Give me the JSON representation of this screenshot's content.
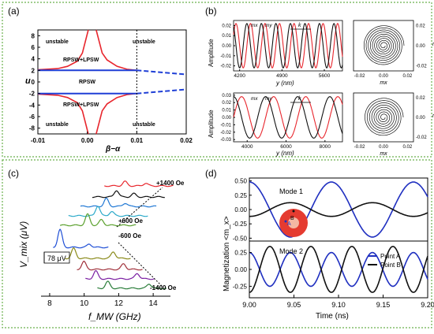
{
  "chart_data": [
    {
      "panel_label": "(a)",
      "type": "line",
      "xlabel": "β−α",
      "ylabel": "u",
      "xlim": [
        -0.01,
        0.02
      ],
      "ylim": [
        -9,
        9
      ],
      "x_ticks": [
        "-0.01",
        "0.00",
        "0.01",
        "0.02"
      ],
      "y_ticks": [
        "8",
        "6",
        "4",
        "2",
        "0",
        "-2",
        "-4",
        "-6",
        "-8"
      ],
      "vline_x": 0.01,
      "regions": [
        "unstable",
        "unstable",
        "RPSW+LPSW",
        "RPSW",
        "RPSW+LPSW",
        "unstable",
        "unstable"
      ],
      "series": [
        {
          "name": "upper boundary",
          "color": "#e8262d",
          "x": [
            -0.01,
            -0.006,
            -0.004,
            -0.002,
            -0.001,
            0.0002
          ],
          "y": [
            2.1,
            2.3,
            2.7,
            3.6,
            5.0,
            9.0
          ]
        },
        {
          "name": "upper boundary right",
          "color": "#e8262d",
          "x": [
            0.0018,
            0.003,
            0.004,
            0.006,
            0.008,
            0.01
          ],
          "y": [
            9.0,
            5.0,
            3.8,
            2.7,
            2.2,
            2.0
          ]
        },
        {
          "name": "lower boundary",
          "color": "#e8262d",
          "x": [
            -0.01,
            -0.006,
            -0.004,
            -0.002,
            -0.001,
            0.0002
          ],
          "y": [
            -2.1,
            -2.3,
            -2.7,
            -3.6,
            -5.0,
            -9.0
          ]
        },
        {
          "name": "lower boundary right",
          "color": "#e8262d",
          "x": [
            0.0018,
            0.003,
            0.004,
            0.006,
            0.008,
            0.01
          ],
          "y": [
            -9.0,
            -5.0,
            -3.8,
            -2.7,
            -2.2,
            -2.0
          ]
        },
        {
          "name": "u=+2",
          "color": "#1f3fd6",
          "x": [
            -0.01,
            0.01
          ],
          "y": [
            2,
            2
          ]
        },
        {
          "name": "u=-2",
          "color": "#1f3fd6",
          "x": [
            -0.01,
            0.01
          ],
          "y": [
            -2,
            -2
          ]
        },
        {
          "name": "dashed upper",
          "color": "#1f3fd6",
          "x": [
            0.01,
            0.02
          ],
          "y": [
            2,
            1.3
          ]
        },
        {
          "name": "dashed lower",
          "color": "#1f3fd6",
          "x": [
            0.01,
            0.02
          ],
          "y": [
            -2,
            -1.3
          ]
        }
      ]
    },
    {
      "panel_label": "(b)",
      "type": "line",
      "top": {
        "ylabel": "Amplitude",
        "xlabel": "y (nm)",
        "x_ticks": [
          "4200",
          "4900",
          "5600"
        ],
        "y_ticks": [
          "0.02",
          "0.01",
          "0.00",
          "-0.01",
          "-0.02"
        ],
        "xlim": [
          4100,
          5900
        ],
        "ylim": [
          -0.025,
          0.025
        ],
        "series_labels": [
          "mx",
          "my"
        ],
        "wave_label": "k",
        "wavelength_nm": 240,
        "amplitude": 0.022
      },
      "bottom": {
        "ylabel": "Amplitude",
        "xlabel": "y (nm)",
        "x_ticks": [
          "4000",
          "6000",
          "8000"
        ],
        "y_ticks": [
          "0.03",
          "0.02",
          "0.01",
          "0.00",
          "-0.01",
          "-0.02",
          "-0.03"
        ],
        "xlim": [
          3300,
          8900
        ],
        "ylim": [
          -0.033,
          0.033
        ],
        "series_labels": [
          "mx",
          "my"
        ],
        "wave_label": "k",
        "wavelength_nm": 1650,
        "amplitude": 0.028
      },
      "orbit_axes": {
        "xlabel": "mx",
        "ylabel": "my",
        "x_ticks": [
          "-0.02",
          "0.00",
          "0.02"
        ],
        "y_ticks": [
          "0.02",
          "0.00",
          "-0.02"
        ]
      },
      "series_colors": {
        "mx": "#e8262d",
        "my": "#111111"
      }
    },
    {
      "panel_label": "(c)",
      "type": "line",
      "ylabel": "V_mix (μV)",
      "xlabel": "f_MW (GHz)",
      "x_ticks": [
        "8",
        "10",
        "12",
        "14"
      ],
      "xlim": [
        7.5,
        15
      ],
      "field_labels": [
        "+1400 Oe",
        "+600 Oe",
        "-600 Oe",
        "-1400 Oe"
      ],
      "scale_bar": "78 μV",
      "series": [
        {
          "color": "#e8262d",
          "peaks": [
            [
              12.0,
              0.4
            ],
            [
              13.2,
              0.25
            ]
          ]
        },
        {
          "color": "#111111",
          "peaks": [
            [
              11.6,
              0.6
            ],
            [
              12.6,
              0.3
            ]
          ]
        },
        {
          "color": "#1f77d4",
          "peaks": [
            [
              11.1,
              0.7
            ],
            [
              12.2,
              0.3
            ]
          ]
        },
        {
          "color": "#2aa9c9",
          "peaks": [
            [
              10.7,
              0.9
            ],
            [
              11.5,
              0.4
            ]
          ]
        },
        {
          "color": "#5aa02c",
          "peaks": [
            [
              10.2,
              1.0
            ],
            [
              11.0,
              0.5
            ]
          ]
        },
        {
          "color": "#1f4fd6",
          "peaks": [
            [
              8.6,
              1.6
            ],
            [
              10.3,
              0.3
            ]
          ]
        },
        {
          "color": "#8a8a1a",
          "peaks": [
            [
              9.3,
              0.9
            ],
            [
              11.6,
              0.6
            ]
          ]
        },
        {
          "color": "#a0303a",
          "peaks": [
            [
              9.8,
              0.7
            ],
            [
              12.1,
              0.5
            ]
          ]
        },
        {
          "color": "#7b1fa2",
          "peaks": [
            [
              10.4,
              0.7
            ],
            [
              12.8,
              0.5
            ]
          ]
        },
        {
          "color": "#2a7d3a",
          "peaks": [
            [
              11.0,
              0.6
            ],
            [
              13.4,
              0.4
            ]
          ]
        }
      ]
    },
    {
      "panel_label": "(d)",
      "type": "line",
      "xlabel": "Time (ns)",
      "ylabel": "Magnetization <m_x>",
      "x_ticks": [
        "9.00",
        "9.05",
        "9.10",
        "9.15",
        "9.20"
      ],
      "xlim": [
        9.0,
        9.2
      ],
      "mode1": {
        "title": "Mode 1",
        "y_ticks": [
          "0.50",
          "0.25",
          "0.00",
          "-0.25",
          "-0.50"
        ],
        "ylim": [
          -0.55,
          0.55
        ],
        "pointA": {
          "amp": 0.48,
          "period": 0.092,
          "phase": 0.0
        },
        "pointB": {
          "amp": 0.12,
          "period": 0.092,
          "phase": 3.14
        }
      },
      "mode2": {
        "title": "Mode 2",
        "y_ticks": [
          "0.25",
          "0.00",
          "-0.25"
        ],
        "ylim": [
          -0.42,
          0.42
        ],
        "pointA": {
          "amp": 0.25,
          "period": 0.046,
          "phase": 0.0
        },
        "pointB": {
          "amp": 0.34,
          "period": 0.046,
          "phase": 3.14
        }
      },
      "legend": [
        "Point A",
        "Point B"
      ],
      "inset_labels": [
        "A",
        "B"
      ],
      "series_colors": {
        "Point A": "#1f2fc0",
        "Point B": "#111111"
      }
    }
  ]
}
